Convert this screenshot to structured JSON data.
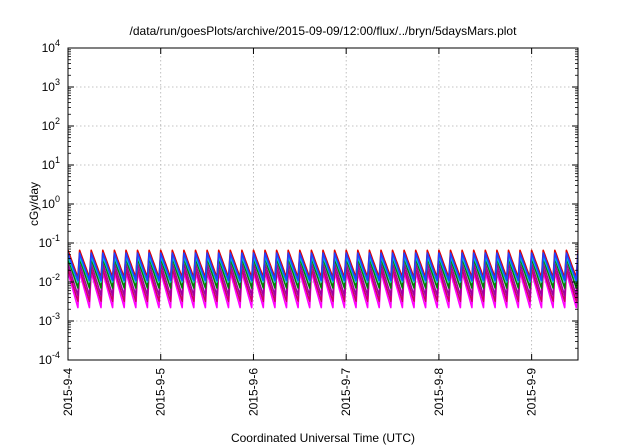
{
  "chart_data": {
    "type": "line",
    "title": "/data/run/goesPlots/archive/2015-09-09/12:00/flux/../bryn/5daysMars.plot",
    "xlabel": "Coordinated Universal Time (UTC)",
    "ylabel": "cGy/day",
    "yscale": "log",
    "ylim": [
      0.0001,
      10000
    ],
    "y_ticks": [
      {
        "exp": "-4",
        "value": 0.0001
      },
      {
        "exp": "-3",
        "value": 0.001
      },
      {
        "exp": "-2",
        "value": 0.01
      },
      {
        "exp": "-1",
        "value": 0.1
      },
      {
        "exp": "0",
        "value": 1
      },
      {
        "exp": "1",
        "value": 10
      },
      {
        "exp": "2",
        "value": 100
      },
      {
        "exp": "3",
        "value": 1000
      },
      {
        "exp": "4",
        "value": 10000
      }
    ],
    "y_tick_base": "10",
    "x_ticks": [
      "2015-9-4",
      "2015-9-5",
      "2015-9-6",
      "2015-9-7",
      "2015-9-8",
      "2015-9-9"
    ],
    "xlim": [
      "2015-09-04 00:00",
      "2015-09-09 12:00"
    ],
    "grid": true,
    "sawtooth_period_hours": 3,
    "series": [
      {
        "color": "#ff00ff",
        "peak": 0.018,
        "trough": 0.0022
      },
      {
        "color": "#cc0066",
        "peak": 0.022,
        "trough": 0.0032
      },
      {
        "color": "#a000a0",
        "peak": 0.03,
        "trough": 0.0045
      },
      {
        "color": "#008000",
        "peak": 0.04,
        "trough": 0.007
      },
      {
        "color": "#00cccc",
        "peak": 0.045,
        "trough": 0.01
      },
      {
        "color": "#e00000",
        "peak": 0.065,
        "trough": 0.013
      },
      {
        "color": "#2040ff",
        "peak": 0.055,
        "trough": 0.011
      }
    ]
  }
}
